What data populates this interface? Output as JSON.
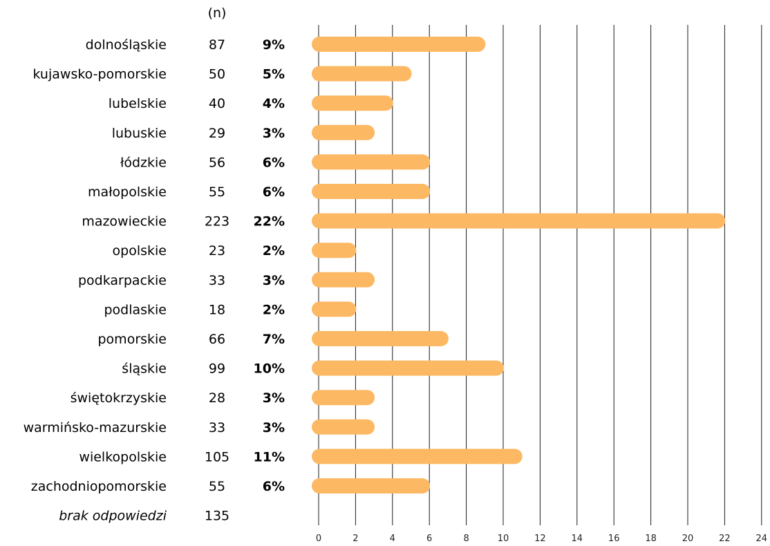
{
  "chart_data": {
    "type": "bar",
    "orientation": "horizontal",
    "n_header": "(n)",
    "categories": [
      "dolnośląskie",
      "kujawsko-pomorskie",
      "lubelskie",
      "lubuskie",
      "łódzkie",
      "małopolskie",
      "mazowieckie",
      "opolskie",
      "podkarpackie",
      "podlaskie",
      "pomorskie",
      "śląskie",
      "świętokrzyskie",
      "warmińsko-mazurskie",
      "wielkopolskie",
      "zachodniopomorskie",
      "brak odpowiedzi"
    ],
    "n": [
      "87",
      "50",
      "40",
      "29",
      "56",
      "55",
      "223",
      "23",
      "33",
      "18",
      "66",
      "99",
      "28",
      "33",
      "105",
      "55",
      "135"
    ],
    "percent_labels": [
      "9%",
      "5%",
      "4%",
      "3%",
      "6%",
      "6%",
      "22%",
      "2%",
      "3%",
      "2%",
      "7%",
      "10%",
      "3%",
      "3%",
      "11%",
      "6%",
      ""
    ],
    "values": [
      9,
      5,
      4,
      3,
      6,
      6,
      22,
      2,
      3,
      2,
      7,
      10,
      3,
      3,
      11,
      6,
      null
    ],
    "italic_rows": [
      "brak odpowiedzi"
    ],
    "xlim": [
      0,
      24
    ],
    "xticks": [
      "0",
      "2",
      "4",
      "6",
      "8",
      "10",
      "12",
      "14",
      "16",
      "18",
      "20",
      "22",
      "24"
    ],
    "grid": true,
    "bar_color": "#fdb863"
  }
}
